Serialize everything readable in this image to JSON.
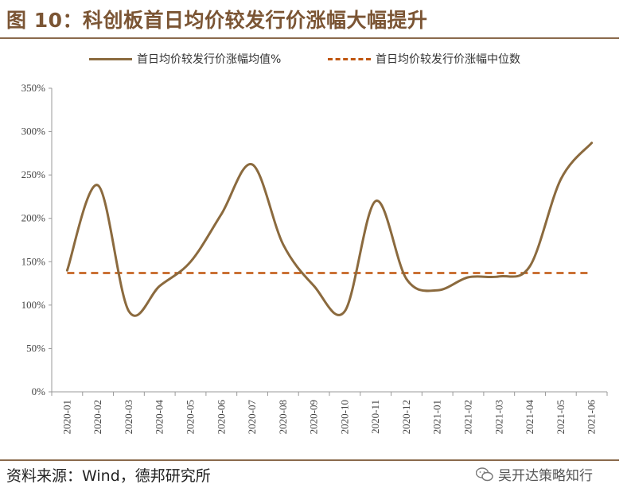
{
  "title": "图 10：科创板首日均价较发行价涨幅大幅提升",
  "source": "资料来源：Wind，德邦研究所",
  "watermark": {
    "text": "吴开达策略知行",
    "icon": "wechat-icon"
  },
  "colors": {
    "accent": "#7b5534",
    "mean_line": "#8b6a3e",
    "median_line": "#c0560f"
  },
  "chart_data": {
    "type": "line",
    "categories": [
      "2020-01",
      "2020-02",
      "2020-03",
      "2020-04",
      "2020-05",
      "2020-06",
      "2020-07",
      "2020-08",
      "2020-09",
      "2020-10",
      "2020-11",
      "2020-12",
      "2021-01",
      "2021-02",
      "2021-03",
      "2021-04",
      "2021-05",
      "2021-06"
    ],
    "series": [
      {
        "name": "首日均价较发行价涨幅均值%",
        "style": "solid",
        "values": [
          140,
          238,
          93,
          122,
          150,
          205,
          262,
          170,
          122,
          93,
          220,
          130,
          117,
          132,
          133,
          145,
          245,
          287
        ]
      },
      {
        "name": "首日均价较发行价涨幅中位数",
        "style": "dashed",
        "values": [
          137,
          137,
          137,
          137,
          137,
          137,
          137,
          137,
          137,
          137,
          137,
          137,
          137,
          137,
          137,
          137,
          137,
          137
        ]
      }
    ],
    "ylim": [
      0,
      350
    ],
    "yticks": [
      0,
      50,
      100,
      150,
      200,
      250,
      300,
      350
    ],
    "ytick_labels": [
      "0%",
      "50%",
      "100%",
      "150%",
      "200%",
      "250%",
      "300%",
      "350%"
    ],
    "grid": false,
    "legend": "top"
  }
}
